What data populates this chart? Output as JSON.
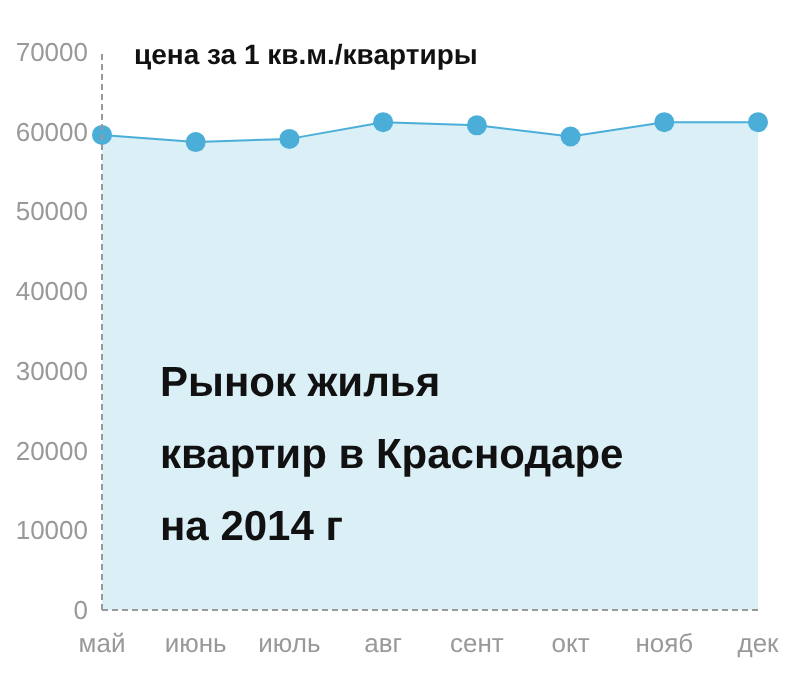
{
  "chart_data": {
    "type": "area",
    "title": "цена за 1 кв.м./квартиры",
    "categories": [
      "май",
      "июнь",
      "июль",
      "авг",
      "сент",
      "окт",
      "нояб",
      "дек"
    ],
    "series": [
      {
        "color": "#4aaed8",
        "values": [
          59600,
          58700,
          59100,
          61200,
          60800,
          59400,
          61200,
          61200
        ]
      }
    ],
    "ylim": [
      0,
      70000
    ],
    "yticks": [
      0,
      10000,
      20000,
      30000,
      40000,
      50000,
      60000,
      70000
    ],
    "grid": false,
    "marker": "circle",
    "annotations": [
      "Рынок жилья\nквартир в Краснодаре\nна 2014 г"
    ]
  }
}
